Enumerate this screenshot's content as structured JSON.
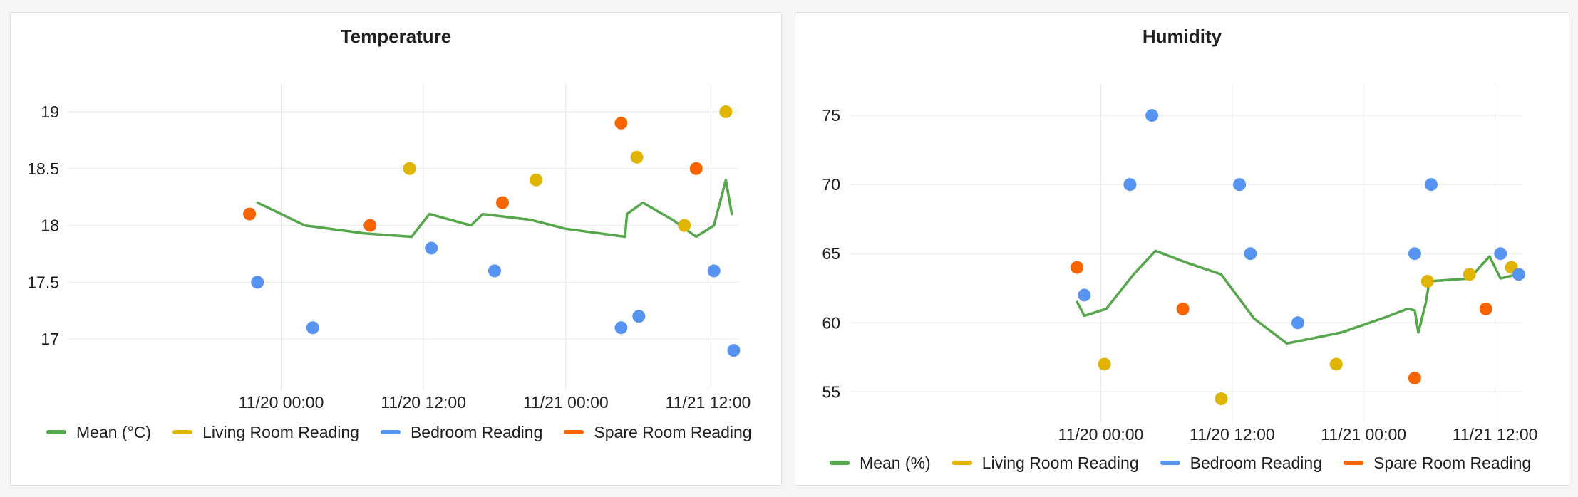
{
  "colors": {
    "mean": "#56a64b",
    "living": "#e0b400",
    "bedroom": "#5794f2",
    "spare": "#fa6400"
  },
  "chart_data": [
    {
      "type": "scatter",
      "title": "Temperature",
      "x_axis": {
        "type": "time",
        "ticks": [
          "11/20 00:00",
          "11/20 12:00",
          "11/21 00:00",
          "11/21 12:00"
        ],
        "range": [
          "2023-11-19 06:00",
          "2023-11-21 14:30"
        ]
      },
      "y_axis": {
        "ticks": [
          17,
          17.5,
          18,
          18.5,
          19
        ],
        "range": [
          16.55,
          19.15
        ]
      },
      "series": [
        {
          "name": "Mean (°C)",
          "type": "line",
          "color_key": "mean",
          "points": [
            [
              "2023-11-19 22:00",
              18.2
            ],
            [
              "2023-11-20 02:00",
              18.0
            ],
            [
              "2023-11-20 07:00",
              17.93
            ],
            [
              "2023-11-20 11:00",
              17.9
            ],
            [
              "2023-11-20 12:30",
              18.1
            ],
            [
              "2023-11-20 16:00",
              18.0
            ],
            [
              "2023-11-20 17:00",
              18.1
            ],
            [
              "2023-11-20 21:00",
              18.05
            ],
            [
              "2023-11-21 00:00",
              17.97
            ],
            [
              "2023-11-21 05:00",
              17.9
            ],
            [
              "2023-11-21 05:10",
              18.1
            ],
            [
              "2023-11-21 06:30",
              18.2
            ],
            [
              "2023-11-21 09:00",
              18.05
            ],
            [
              "2023-11-21 11:00",
              17.9
            ],
            [
              "2023-11-21 12:30",
              18.0
            ],
            [
              "2023-11-21 13:30",
              18.4
            ],
            [
              "2023-11-21 14:00",
              18.1
            ]
          ]
        },
        {
          "name": "Living Room Reading",
          "type": "points",
          "color_key": "living",
          "points": [
            [
              "2023-11-20 10:50",
              18.5
            ],
            [
              "2023-11-20 21:30",
              18.4
            ],
            [
              "2023-11-21 06:00",
              18.6
            ],
            [
              "2023-11-21 10:00",
              18.0
            ],
            [
              "2023-11-21 13:30",
              19.0
            ]
          ]
        },
        {
          "name": "Bedroom Reading",
          "type": "points",
          "color_key": "bedroom",
          "points": [
            [
              "2023-11-19 22:00",
              17.5
            ],
            [
              "2023-11-20 02:40",
              17.1
            ],
            [
              "2023-11-20 12:40",
              17.8
            ],
            [
              "2023-11-20 18:00",
              17.6
            ],
            [
              "2023-11-21 04:40",
              17.1
            ],
            [
              "2023-11-21 06:10",
              17.2
            ],
            [
              "2023-11-21 12:30",
              17.6
            ],
            [
              "2023-11-21 14:10",
              16.9
            ]
          ]
        },
        {
          "name": "Spare Room Reading",
          "type": "points",
          "color_key": "spare",
          "points": [
            [
              "2023-11-19 21:20",
              18.1
            ],
            [
              "2023-11-20 07:30",
              18.0
            ],
            [
              "2023-11-20 18:40",
              18.2
            ],
            [
              "2023-11-21 04:40",
              18.9
            ],
            [
              "2023-11-21 11:00",
              18.5
            ]
          ]
        }
      ],
      "legend": [
        "Mean (°C)",
        "Living Room Reading",
        "Bedroom Reading",
        "Spare Room Reading"
      ],
      "legend_position": "bottom",
      "grid": true
    },
    {
      "type": "scatter",
      "title": "Humidity",
      "x_axis": {
        "type": "time",
        "ticks": [
          "11/20 00:00",
          "11/20 12:00",
          "11/21 00:00",
          "11/21 12:00"
        ],
        "range": [
          "2023-11-19 01:00",
          "2023-11-21 14:30"
        ]
      },
      "y_axis": {
        "ticks": [
          55,
          60,
          65,
          70,
          75
        ],
        "range": [
          52.8,
          76.5
        ]
      },
      "series": [
        {
          "name": "Mean (%)",
          "type": "line",
          "color_key": "mean",
          "points": [
            [
              "2023-11-19 21:50",
              61.5
            ],
            [
              "2023-11-19 22:30",
              60.5
            ],
            [
              "2023-11-20 00:30",
              61.0
            ],
            [
              "2023-11-20 03:00",
              63.5
            ],
            [
              "2023-11-20 05:00",
              65.2
            ],
            [
              "2023-11-20 08:00",
              64.3
            ],
            [
              "2023-11-20 11:00",
              63.5
            ],
            [
              "2023-11-20 14:00",
              60.3
            ],
            [
              "2023-11-20 17:00",
              58.5
            ],
            [
              "2023-11-20 22:00",
              59.3
            ],
            [
              "2023-11-21 02:00",
              60.4
            ],
            [
              "2023-11-21 04:00",
              61.0
            ],
            [
              "2023-11-21 04:40",
              60.9
            ],
            [
              "2023-11-21 05:00",
              59.3
            ],
            [
              "2023-11-21 05:40",
              61.4
            ],
            [
              "2023-11-21 06:00",
              63.0
            ],
            [
              "2023-11-21 09:40",
              63.2
            ],
            [
              "2023-11-21 11:30",
              64.8
            ],
            [
              "2023-11-21 12:30",
              63.2
            ],
            [
              "2023-11-21 14:00",
              63.5
            ]
          ]
        },
        {
          "name": "Living Room Reading",
          "type": "points",
          "color_key": "living",
          "points": [
            [
              "2023-11-20 00:20",
              57.0
            ],
            [
              "2023-11-20 11:00",
              54.5
            ],
            [
              "2023-11-20 21:30",
              57.0
            ],
            [
              "2023-11-21 05:50",
              63.0
            ],
            [
              "2023-11-21 09:40",
              63.5
            ],
            [
              "2023-11-21 13:30",
              64.0
            ]
          ]
        },
        {
          "name": "Bedroom Reading",
          "type": "points",
          "color_key": "bedroom",
          "points": [
            [
              "2023-11-19 22:30",
              62.0
            ],
            [
              "2023-11-20 02:40",
              70.0
            ],
            [
              "2023-11-20 04:40",
              75.0
            ],
            [
              "2023-11-20 12:40",
              70.0
            ],
            [
              "2023-11-20 13:40",
              65.0
            ],
            [
              "2023-11-20 18:00",
              60.0
            ],
            [
              "2023-11-21 04:40",
              65.0
            ],
            [
              "2023-11-21 06:10",
              70.0
            ],
            [
              "2023-11-21 12:30",
              65.0
            ],
            [
              "2023-11-21 14:10",
              63.5
            ]
          ]
        },
        {
          "name": "Spare Room Reading",
          "type": "points",
          "color_key": "spare",
          "points": [
            [
              "2023-11-19 21:50",
              64.0
            ],
            [
              "2023-11-20 07:30",
              61.0
            ],
            [
              "2023-11-21 04:40",
              56.0
            ],
            [
              "2023-11-21 11:10",
              61.0
            ]
          ]
        }
      ],
      "legend": [
        "Mean (%)",
        "Living Room Reading",
        "Bedroom Reading",
        "Spare Room Reading"
      ],
      "legend_position": "bottom",
      "grid": true
    }
  ]
}
